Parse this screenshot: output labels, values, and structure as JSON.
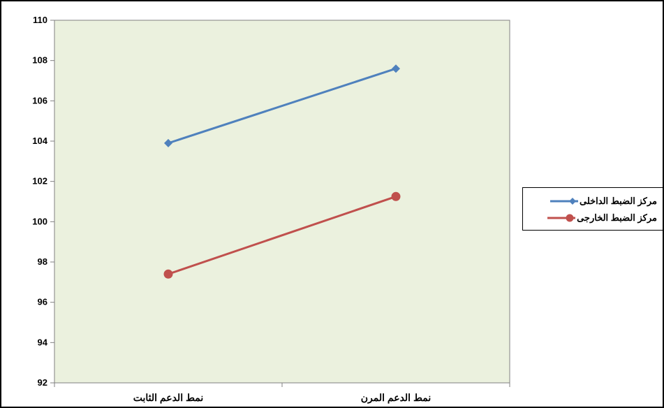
{
  "chart_data": {
    "type": "line",
    "categories": [
      "نمط الدعم الثابت",
      "نمط الدعم المرن"
    ],
    "series": [
      {
        "name": "مركز الضبط الداخلى",
        "values": [
          103.9,
          107.6
        ],
        "color": "#4f81bd",
        "marker": "diamond"
      },
      {
        "name": "مركز الضبط الخارجى",
        "values": [
          97.4,
          101.25
        ],
        "color": "#c0504d",
        "marker": "circle"
      }
    ],
    "ylim": [
      92,
      110
    ],
    "yticks": [
      92,
      94,
      96,
      98,
      100,
      102,
      104,
      106,
      108,
      110
    ],
    "plot_background": "#ebf1de",
    "grid": false,
    "legend_position": "right"
  }
}
